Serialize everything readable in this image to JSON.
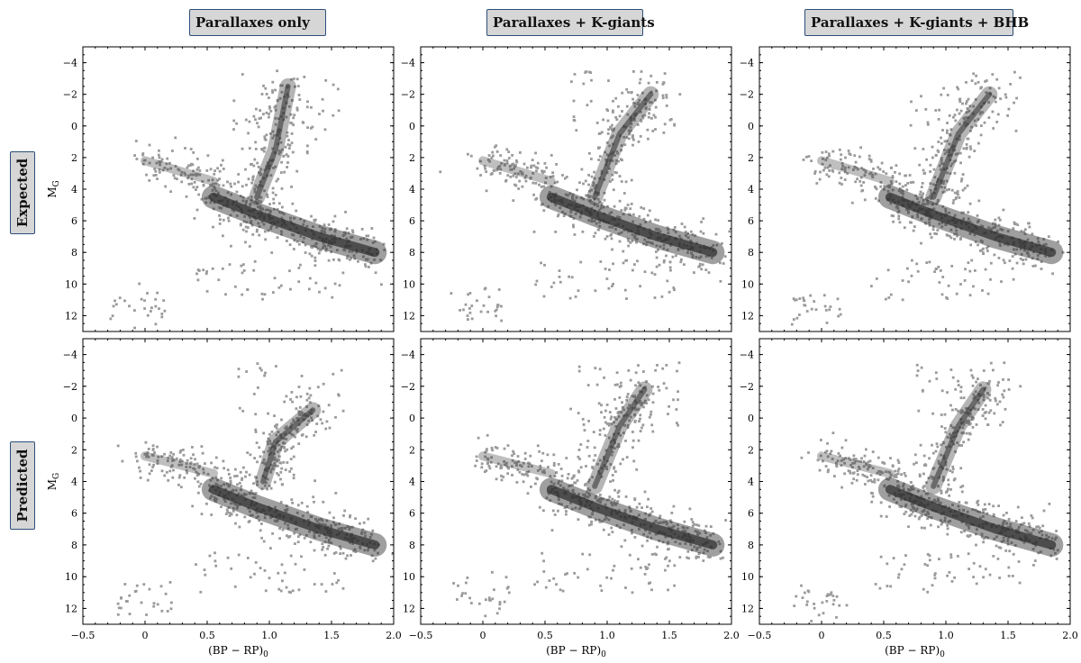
{
  "column_titles": [
    "Parallaxes only",
    "Parallaxes + K-giants",
    "Parallaxes + K-giants + BHB"
  ],
  "row_titles": [
    "Expected",
    "Predicted"
  ],
  "ylabel": "M",
  "ylabel_subscript": "G",
  "xlabel": "(BP − RP)",
  "xlabel_subscript": "0",
  "chart_data": {
    "type": "scatter",
    "layout": "2x3 grid, shared axes",
    "x_axis": {
      "range": [
        -0.5,
        2.0
      ],
      "ticks": [
        -0.5,
        0,
        0.5,
        1.0,
        1.5,
        2.0
      ],
      "tick_labels": [
        "−0.5",
        "0",
        "0.5",
        "1.0",
        "1.5",
        "2.0"
      ]
    },
    "y_axis": {
      "range": [
        13,
        -5
      ],
      "inverted": true,
      "ticks": [
        -4,
        -2,
        0,
        2,
        4,
        6,
        8,
        10,
        12
      ],
      "tick_labels": [
        "−4",
        "−2",
        "0",
        "2",
        "4",
        "6",
        "8",
        "10",
        "12"
      ]
    },
    "point_color": "#9a9a9a",
    "density_color": "#2b2b2b",
    "grid": false,
    "panels": [
      {
        "row": "Expected",
        "column": "Parallaxes only",
        "features": {
          "main_sequence": [
            [
              0.55,
              4.5
            ],
            [
              0.9,
              5.6
            ],
            [
              1.4,
              7.0
            ],
            [
              1.85,
              8.0
            ]
          ],
          "red_giant_branch": [
            [
              0.9,
              4.5
            ],
            [
              1.05,
              1.5
            ],
            [
              1.15,
              -2.5
            ]
          ],
          "blue_horizontal_branch": [
            [
              0.0,
              2.2
            ],
            [
              0.55,
              3.5
            ]
          ],
          "white_dwarfs": [
            [
              -0.15,
              11.5
            ]
          ]
        }
      },
      {
        "row": "Expected",
        "column": "Parallaxes + K-giants",
        "features": {
          "main_sequence": [
            [
              0.55,
              4.5
            ],
            [
              0.9,
              5.6
            ],
            [
              1.4,
              7.0
            ],
            [
              1.85,
              8.0
            ]
          ],
          "red_giant_branch": [
            [
              0.9,
              4.5
            ],
            [
              1.1,
              0.5
            ],
            [
              1.35,
              -2.0
            ]
          ],
          "blue_horizontal_branch": [
            [
              0.0,
              2.2
            ],
            [
              0.55,
              3.5
            ]
          ],
          "white_dwarfs": [
            [
              -0.15,
              11.5
            ]
          ]
        }
      },
      {
        "row": "Expected",
        "column": "Parallaxes + K-giants + BHB",
        "features": {
          "main_sequence": [
            [
              0.55,
              4.5
            ],
            [
              0.9,
              5.6
            ],
            [
              1.4,
              7.0
            ],
            [
              1.85,
              8.0
            ]
          ],
          "red_giant_branch": [
            [
              0.9,
              4.5
            ],
            [
              1.1,
              0.5
            ],
            [
              1.35,
              -2.0
            ]
          ],
          "blue_horizontal_branch": [
            [
              0.0,
              2.2
            ],
            [
              0.55,
              3.5
            ]
          ],
          "white_dwarfs": [
            [
              -0.15,
              11.5
            ]
          ]
        }
      },
      {
        "row": "Predicted",
        "column": "Parallaxes only",
        "features": {
          "main_sequence": [
            [
              0.55,
              4.5
            ],
            [
              0.9,
              5.6
            ],
            [
              1.4,
              7.0
            ],
            [
              1.85,
              8.0
            ]
          ],
          "red_giant_branch": [
            [
              0.95,
              4.0
            ],
            [
              1.05,
              1.5
            ],
            [
              1.35,
              -0.5
            ]
          ],
          "blue_horizontal_branch": [
            [
              0.0,
              2.4
            ],
            [
              0.55,
              3.5
            ]
          ],
          "white_dwarfs": [
            [
              -0.1,
              11.3
            ]
          ]
        }
      },
      {
        "row": "Predicted",
        "column": "Parallaxes + K-giants",
        "features": {
          "main_sequence": [
            [
              0.55,
              4.5
            ],
            [
              0.9,
              5.6
            ],
            [
              1.4,
              7.0
            ],
            [
              1.85,
              8.0
            ]
          ],
          "red_giant_branch": [
            [
              0.9,
              4.3
            ],
            [
              1.1,
              0.5
            ],
            [
              1.3,
              -1.8
            ]
          ],
          "blue_horizontal_branch": [
            [
              0.0,
              2.4
            ],
            [
              0.55,
              3.5
            ]
          ],
          "white_dwarfs": [
            [
              -0.1,
              11.0
            ]
          ]
        }
      },
      {
        "row": "Predicted",
        "column": "Parallaxes + K-giants + BHB",
        "features": {
          "main_sequence": [
            [
              0.55,
              4.5
            ],
            [
              0.9,
              5.6
            ],
            [
              1.4,
              7.0
            ],
            [
              1.85,
              8.0
            ]
          ],
          "red_giant_branch": [
            [
              0.9,
              4.3
            ],
            [
              1.1,
              0.5
            ],
            [
              1.3,
              -1.8
            ]
          ],
          "blue_horizontal_branch": [
            [
              0.0,
              2.4
            ],
            [
              0.55,
              3.5
            ]
          ],
          "white_dwarfs": [
            [
              -0.1,
              11.5
            ]
          ]
        }
      }
    ]
  }
}
